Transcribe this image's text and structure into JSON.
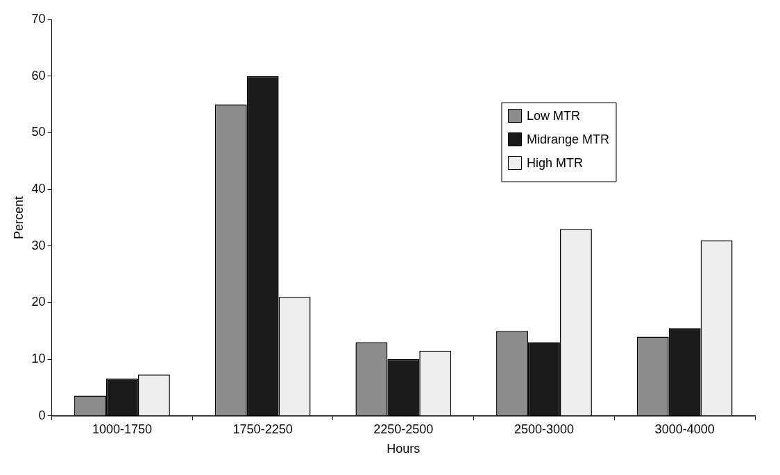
{
  "chart_data": {
    "type": "bar",
    "xlabel": "Hours",
    "ylabel": "Percent",
    "categories": [
      "1000-1750",
      "1750-2250",
      "2250-2500",
      "2500-3000",
      "3000-4000"
    ],
    "series": [
      {
        "name": "Low MTR",
        "color": "#8c8c8c",
        "values": [
          3.6,
          55,
          13,
          15,
          14
        ]
      },
      {
        "name": "Midrange MTR",
        "color": "#1a1a1a",
        "values": [
          6.6,
          60,
          10,
          13,
          15.5
        ]
      },
      {
        "name": "High MTR",
        "color": "#eeeeee",
        "values": [
          7.3,
          21,
          11.5,
          33,
          31
        ]
      }
    ],
    "ylim": [
      0,
      70
    ],
    "yticks": [
      0,
      10,
      20,
      30,
      40,
      50,
      60,
      70
    ],
    "grid": false,
    "legend": "top right"
  }
}
